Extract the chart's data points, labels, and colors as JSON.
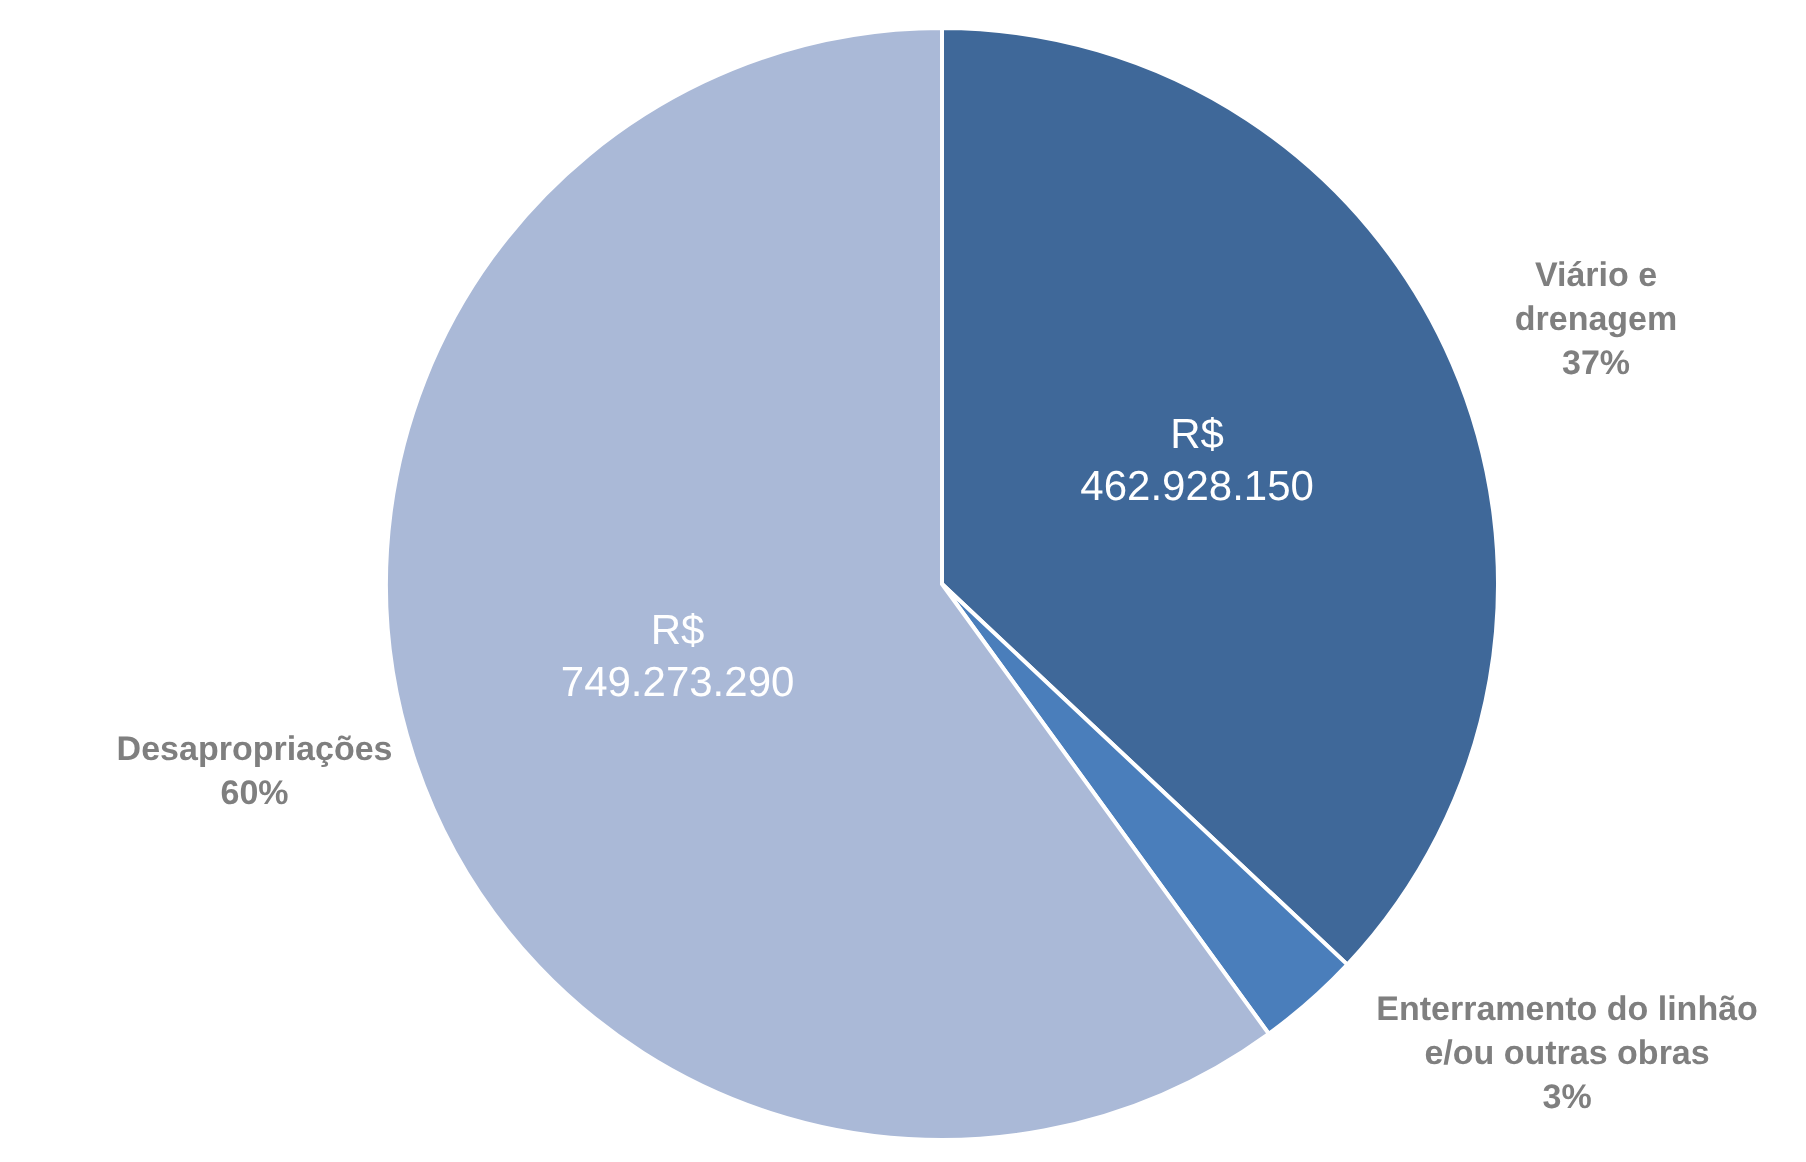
{
  "chart_data": {
    "type": "pie",
    "categories": [
      "Viário e\ndrenagem",
      "Enterramento do linhão\ne/ou outras obras",
      "Desapropriações"
    ],
    "values": [
      37,
      3,
      60
    ],
    "colors": [
      "#3f6899",
      "#4a7ebb",
      "#aab9d7"
    ],
    "value_labels": [
      "37%",
      "3%",
      "60%"
    ],
    "annotations": [
      {
        "text": "R$\n462.928.150",
        "x": "Viário e\ndrenagem"
      },
      {
        "text": "R$\n749.273.290",
        "x": "Desapropriações"
      }
    ],
    "legend": false
  }
}
